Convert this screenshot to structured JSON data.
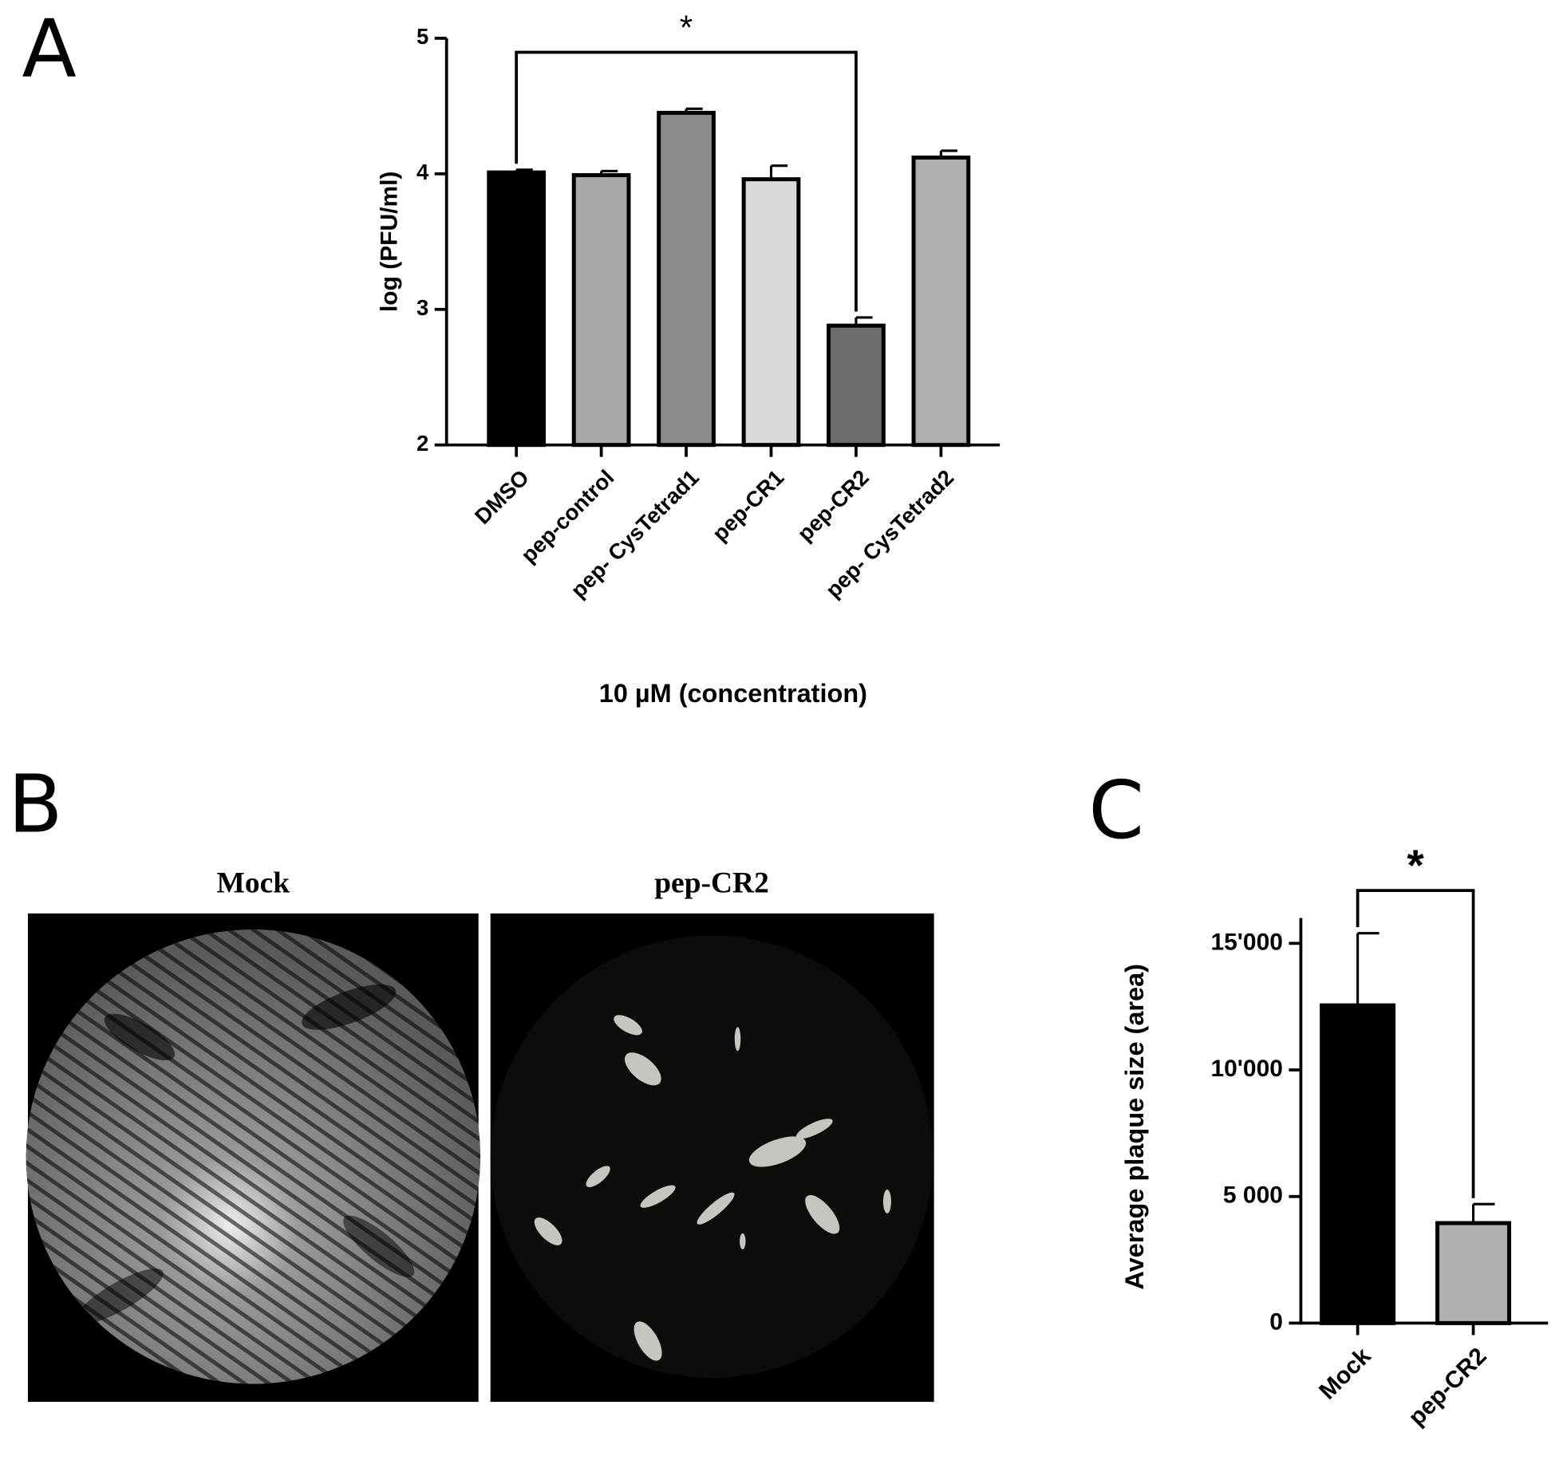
{
  "panel_labels": [
    "A",
    "B",
    "C"
  ],
  "chart_data": [
    {
      "type": "bar",
      "y_label": "log (PFU/ml)",
      "x_label": "10 µM (concentration)",
      "categories": [
        "DMSO",
        "pep-control",
        "pep- CysTetrad1",
        "pep-CR1",
        "pep-CR2",
        "pep- CysTetrad2"
      ],
      "values": [
        4.01,
        3.99,
        4.45,
        3.96,
        2.88,
        4.12
      ],
      "errors": [
        0.02,
        0.03,
        0.03,
        0.1,
        0.06,
        0.05
      ],
      "colors": [
        "#000000",
        "#aaa8aa",
        "#8c8a8c",
        "#d9d9d9",
        "#6e6d6e",
        "#b0aeb0"
      ],
      "ylim": [
        2,
        5
      ],
      "yticks": [
        2,
        3,
        4,
        5
      ],
      "annotation": "*"
    },
    {
      "type": "bar",
      "y_label": "Average plaque size (area)",
      "categories": [
        "Mock",
        "pep-CR2"
      ],
      "values": [
        12550,
        3950
      ],
      "errors": [
        2850,
        750
      ],
      "colors": [
        "#000000",
        "#b0b0b0"
      ],
      "ylim": [
        0,
        16000
      ],
      "yticks": [
        0,
        {
          "value": 5000,
          "label": "5 000"
        },
        {
          "value": 10000,
          "label": "10'000"
        },
        {
          "value": 15000,
          "label": "15'000"
        }
      ],
      "annotation": "*"
    }
  ],
  "images": [
    {
      "title": "Mock"
    },
    {
      "title": "pep-CR2"
    }
  ]
}
